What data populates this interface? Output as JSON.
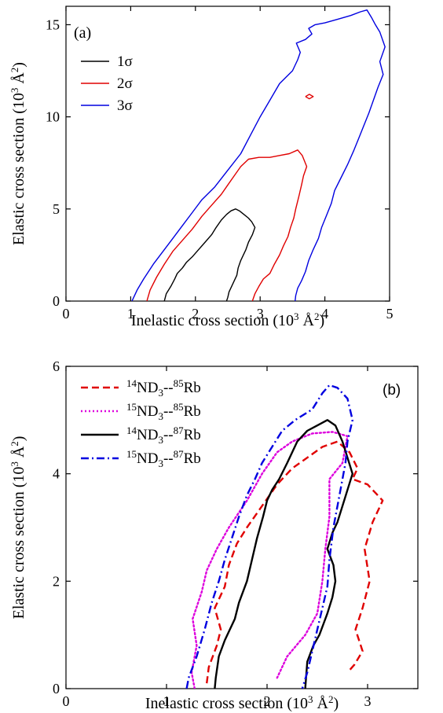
{
  "chart_data": [
    {
      "type": "line",
      "panel_label": "(a)",
      "xlabel": "Inelastic cross section (10",
      "xlabel_sup": "3",
      "xlabel_unit": " Å",
      "xlabel_sup2": "2",
      "xlabel_close": ")",
      "ylabel": "Elastic cross section (10",
      "ylabel_sup": "3",
      "ylabel_unit": " Å",
      "ylabel_sup2": "2",
      "ylabel_close": ")",
      "xlim": [
        0,
        5
      ],
      "ylim": [
        0,
        16
      ],
      "xticks": [
        "0",
        "1",
        "2",
        "3",
        "4",
        "5"
      ],
      "yticks": [
        "0",
        "5",
        "10",
        "15"
      ],
      "legend_position": "upper-left",
      "series": [
        {
          "name": "1σ",
          "color": "#000000",
          "style": "solid",
          "x": [
            1.52,
            1.55,
            1.62,
            1.68,
            1.72,
            1.8,
            1.86,
            1.95,
            2.05,
            2.15,
            2.25,
            2.32,
            2.4,
            2.48,
            2.55,
            2.62,
            2.68,
            2.75,
            2.82,
            2.87,
            2.92,
            2.88,
            2.82,
            2.78,
            2.74,
            2.7,
            2.66,
            2.64,
            2.6,
            2.56,
            2.52,
            2.5,
            2.48
          ],
          "y": [
            0,
            0.4,
            0.8,
            1.2,
            1.5,
            1.8,
            2.1,
            2.4,
            2.8,
            3.2,
            3.6,
            4.0,
            4.4,
            4.7,
            4.9,
            5.0,
            4.9,
            4.7,
            4.5,
            4.3,
            4.0,
            3.6,
            3.2,
            2.8,
            2.5,
            2.2,
            1.8,
            1.4,
            1.1,
            0.8,
            0.5,
            0.2,
            0
          ]
        },
        {
          "name": "2σ",
          "color": "#e00000",
          "style": "solid",
          "x": [
            1.25,
            1.3,
            1.4,
            1.52,
            1.65,
            1.8,
            1.95,
            2.1,
            2.25,
            2.4,
            2.5,
            2.6,
            2.7,
            2.82,
            2.98,
            3.15,
            3.3,
            3.45,
            3.58,
            3.65,
            3.72,
            3.67,
            3.64,
            3.6,
            3.55,
            3.52,
            3.47,
            3.43,
            3.36,
            3.3,
            3.22,
            3.15,
            3.05,
            2.98,
            2.92,
            2.88
          ],
          "y": [
            0,
            0.6,
            1.3,
            2.0,
            2.7,
            3.3,
            3.9,
            4.6,
            5.2,
            5.8,
            6.3,
            6.8,
            7.3,
            7.7,
            7.8,
            7.8,
            7.9,
            8.0,
            8.2,
            7.9,
            7.3,
            6.8,
            6.3,
            5.7,
            5.0,
            4.5,
            4.0,
            3.5,
            3.0,
            2.5,
            2.0,
            1.5,
            1.2,
            0.8,
            0.4,
            0
          ]
        },
        {
          "name": "3σ",
          "color": "#0000e0",
          "style": "solid",
          "x": [
            1.02,
            1.1,
            1.2,
            1.35,
            1.5,
            1.65,
            1.8,
            1.95,
            2.1,
            2.3,
            2.5,
            2.7,
            2.85,
            3.0,
            3.15,
            3.3,
            3.5,
            3.58,
            3.62,
            3.56,
            3.7,
            3.8,
            3.75,
            3.85,
            4.0,
            4.2,
            4.4,
            4.55,
            4.65,
            4.72,
            4.78,
            4.85,
            4.93,
            4.85,
            4.9,
            4.82,
            4.75,
            4.68,
            4.6,
            4.52,
            4.45,
            4.35,
            4.25,
            4.15,
            4.1,
            4.02,
            3.95,
            3.9,
            3.82,
            3.75,
            3.7,
            3.64,
            3.58,
            3.55,
            3.54
          ],
          "y": [
            0,
            0.6,
            1.2,
            2.0,
            2.7,
            3.4,
            4.1,
            4.8,
            5.5,
            6.2,
            7.1,
            8.0,
            9.0,
            10.0,
            10.9,
            11.8,
            12.5,
            13.1,
            13.5,
            14.0,
            14.2,
            14.5,
            14.8,
            15.0,
            15.1,
            15.3,
            15.5,
            15.7,
            15.8,
            15.4,
            15.0,
            14.6,
            13.8,
            13.0,
            12.3,
            11.6,
            10.9,
            10.2,
            9.5,
            8.8,
            8.2,
            7.4,
            6.7,
            6.0,
            5.3,
            4.6,
            4.0,
            3.4,
            2.8,
            2.2,
            1.6,
            1.1,
            0.7,
            0.3,
            0
          ]
        },
        {
          "name": "",
          "color": "#e00000",
          "style": "solid",
          "x": [
            3.7,
            3.76,
            3.82,
            3.76,
            3.7
          ],
          "y": [
            11.1,
            11.22,
            11.1,
            10.98,
            11.1
          ]
        }
      ]
    },
    {
      "type": "line",
      "panel_label": "(b)",
      "xlabel": "Inelastic cross section (10",
      "xlabel_sup": "3",
      "xlabel_unit": " Å",
      "xlabel_sup2": "2",
      "xlabel_close": ")",
      "ylabel": "Elastic cross section (10",
      "ylabel_sup": "3",
      "ylabel_unit": " Å",
      "ylabel_sup2": "2",
      "ylabel_close": ")",
      "xlim": [
        0,
        3.5
      ],
      "ylim": [
        0,
        6
      ],
      "xticks": [
        "0",
        "1",
        "2",
        "3"
      ],
      "yticks": [
        "0",
        "2",
        "4",
        "6"
      ],
      "legend_position": "upper-left",
      "series": [
        {
          "name_parts": [
            "14",
            "ND",
            "3",
            "--",
            "85",
            "Rb"
          ],
          "color": "#e00000",
          "style": "dashed",
          "x": [
            1.4,
            1.42,
            1.5,
            1.54,
            1.48,
            1.58,
            1.62,
            1.7,
            1.8,
            1.95,
            2.1,
            2.25,
            2.4,
            2.55,
            2.7,
            2.82,
            2.9,
            2.85,
            3.0,
            3.15,
            3.05,
            2.97,
            3.02,
            2.95,
            2.88,
            2.95,
            2.87,
            2.8
          ],
          "y": [
            0.1,
            0.4,
            0.8,
            1.1,
            1.5,
            1.9,
            2.3,
            2.7,
            3.0,
            3.4,
            3.8,
            4.1,
            4.3,
            4.5,
            4.6,
            4.4,
            4.1,
            3.9,
            3.8,
            3.5,
            3.1,
            2.6,
            2.0,
            1.5,
            1.1,
            0.7,
            0.45,
            0.3
          ]
        },
        {
          "name_parts": [
            "15",
            "ND",
            "3",
            "--",
            "85",
            "Rb"
          ],
          "color": "#dd00dd",
          "style": "dotted",
          "x": [
            1.28,
            1.25,
            1.3,
            1.26,
            1.35,
            1.4,
            1.5,
            1.62,
            1.8,
            1.95,
            2.1,
            2.25,
            2.45,
            2.65,
            2.8,
            2.75,
            2.62,
            2.62,
            2.58,
            2.55,
            2.5,
            2.38,
            2.2,
            2.1
          ],
          "y": [
            0,
            0.3,
            0.8,
            1.3,
            1.8,
            2.2,
            2.6,
            3.0,
            3.5,
            4.0,
            4.4,
            4.6,
            4.75,
            4.78,
            4.7,
            4.2,
            3.9,
            3.2,
            2.6,
            2.0,
            1.4,
            1.0,
            0.6,
            0.2
          ]
        },
        {
          "name_parts": [
            "14",
            "ND",
            "3",
            "--",
            "87",
            "Rb"
          ],
          "color": "#000000",
          "style": "solid",
          "x": [
            1.48,
            1.49,
            1.52,
            1.58,
            1.68,
            1.72,
            1.8,
            1.85,
            1.9,
            1.96,
            2.0,
            2.05,
            2.12,
            2.2,
            2.3,
            2.4,
            2.5,
            2.6,
            2.68,
            2.75,
            2.8,
            2.85,
            2.8,
            2.75,
            2.7,
            2.65,
            2.6,
            2.66,
            2.68,
            2.65,
            2.6,
            2.56,
            2.52,
            2.46,
            2.4,
            2.38
          ],
          "y": [
            0,
            0.2,
            0.6,
            0.9,
            1.3,
            1.6,
            2.0,
            2.4,
            2.8,
            3.2,
            3.5,
            3.7,
            3.9,
            4.2,
            4.6,
            4.8,
            4.9,
            5.0,
            4.9,
            4.6,
            4.3,
            4.0,
            3.7,
            3.4,
            3.1,
            2.9,
            2.6,
            2.3,
            2.0,
            1.7,
            1.4,
            1.2,
            1.0,
            0.8,
            0.5,
            0
          ]
        },
        {
          "name_parts": [
            "15",
            "ND",
            "3",
            "--",
            "87",
            "Rb"
          ],
          "color": "#0000e0",
          "style": "dashdot",
          "x": [
            1.2,
            1.22,
            1.3,
            1.38,
            1.45,
            1.52,
            1.58,
            1.65,
            1.72,
            1.8,
            1.88,
            1.95,
            2.05,
            2.15,
            2.28,
            2.45,
            2.55,
            2.62,
            2.7,
            2.8,
            2.85,
            2.8,
            2.78,
            2.72,
            2.66,
            2.62,
            2.6,
            2.55,
            2.5,
            2.45,
            2.4,
            2.35
          ],
          "y": [
            0,
            0.2,
            0.6,
            1.1,
            1.6,
            2.0,
            2.4,
            2.8,
            3.2,
            3.6,
            3.9,
            4.2,
            4.5,
            4.8,
            5.0,
            5.2,
            5.5,
            5.65,
            5.6,
            5.4,
            5.0,
            4.6,
            4.2,
            3.6,
            3.0,
            2.4,
            1.9,
            1.5,
            1.1,
            0.7,
            0.3,
            0
          ]
        }
      ]
    }
  ]
}
